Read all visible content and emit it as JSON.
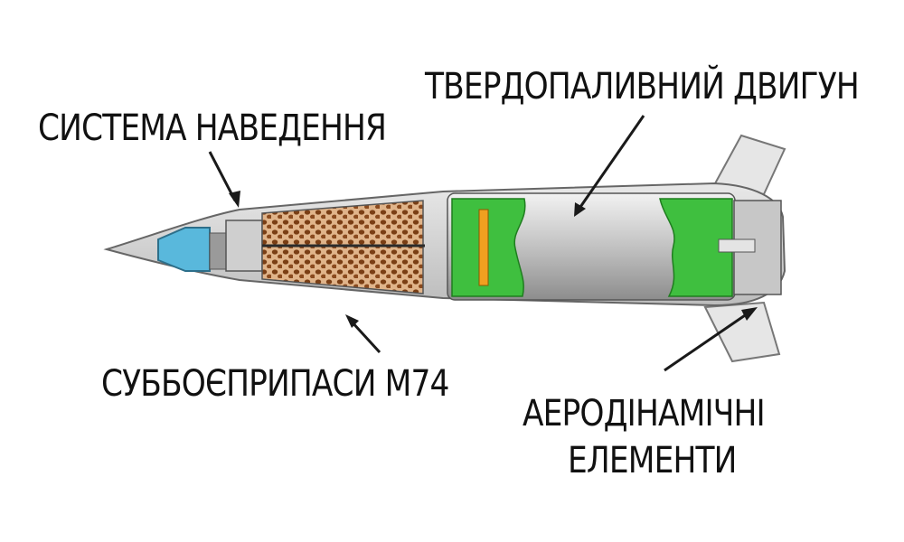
{
  "labels": {
    "guidance": "СИСТЕМА НАВЕДЕННЯ",
    "motor": "ТВЕРДОПАЛИВНИЙ ДВИГУН",
    "submunitions": "СУББОЄПРИПАСИ М74",
    "aero_line1": "АЕРОДІНАМІЧНІ",
    "aero_line2": "ЕЛЕМЕНТИ"
  },
  "colors": {
    "motor_green": "#3fbf3f",
    "seeker_blue": "#59b8dc",
    "submunition_brown": "#8a4a1e",
    "casing_gray": "#d2d2d2",
    "motor_body_gray": "#a9a9a9"
  }
}
